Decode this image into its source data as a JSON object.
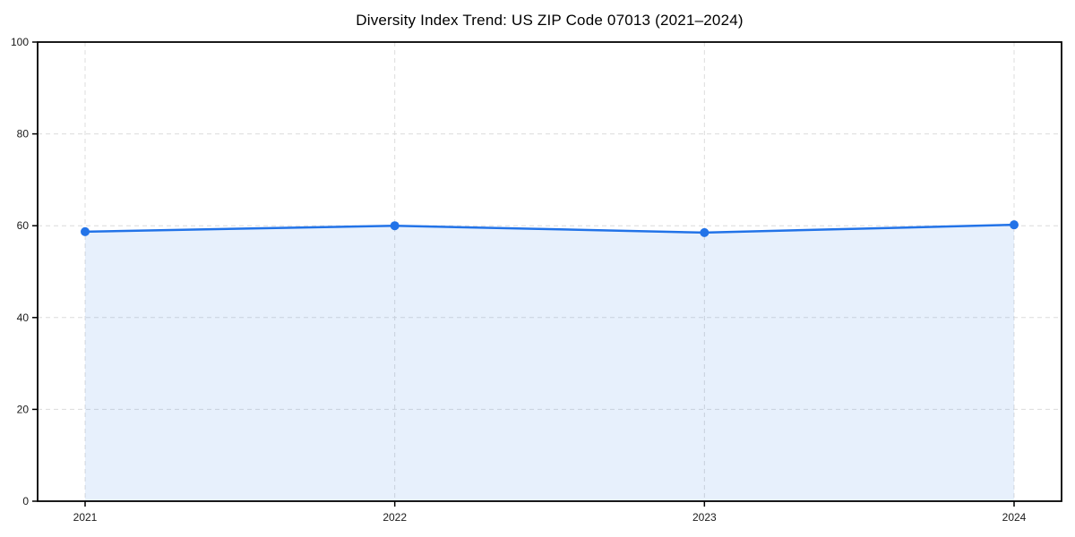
{
  "chart_data": {
    "type": "area",
    "title": "Diversity Index Trend: US ZIP Code 07013 (2021–2024)",
    "categories": [
      "2021",
      "2022",
      "2023",
      "2024"
    ],
    "series": [
      {
        "name": "Diversity Index",
        "values": [
          58.7,
          60.0,
          58.5,
          60.2
        ]
      }
    ],
    "xlabel": "",
    "ylabel": "",
    "ylim": [
      0,
      100
    ],
    "yticks": [
      0,
      20,
      40,
      60,
      80,
      100
    ],
    "grid": "dashed, both axes",
    "legend_position": "none",
    "colors": {
      "line": "#2273e8",
      "marker": "#2273e8",
      "area_fill": "rgba(34, 115, 232, 0.11)",
      "grid": "#dcdcdc",
      "axis": "#000000",
      "tick_text": "#1a1a1a",
      "background": "#ffffff"
    }
  }
}
